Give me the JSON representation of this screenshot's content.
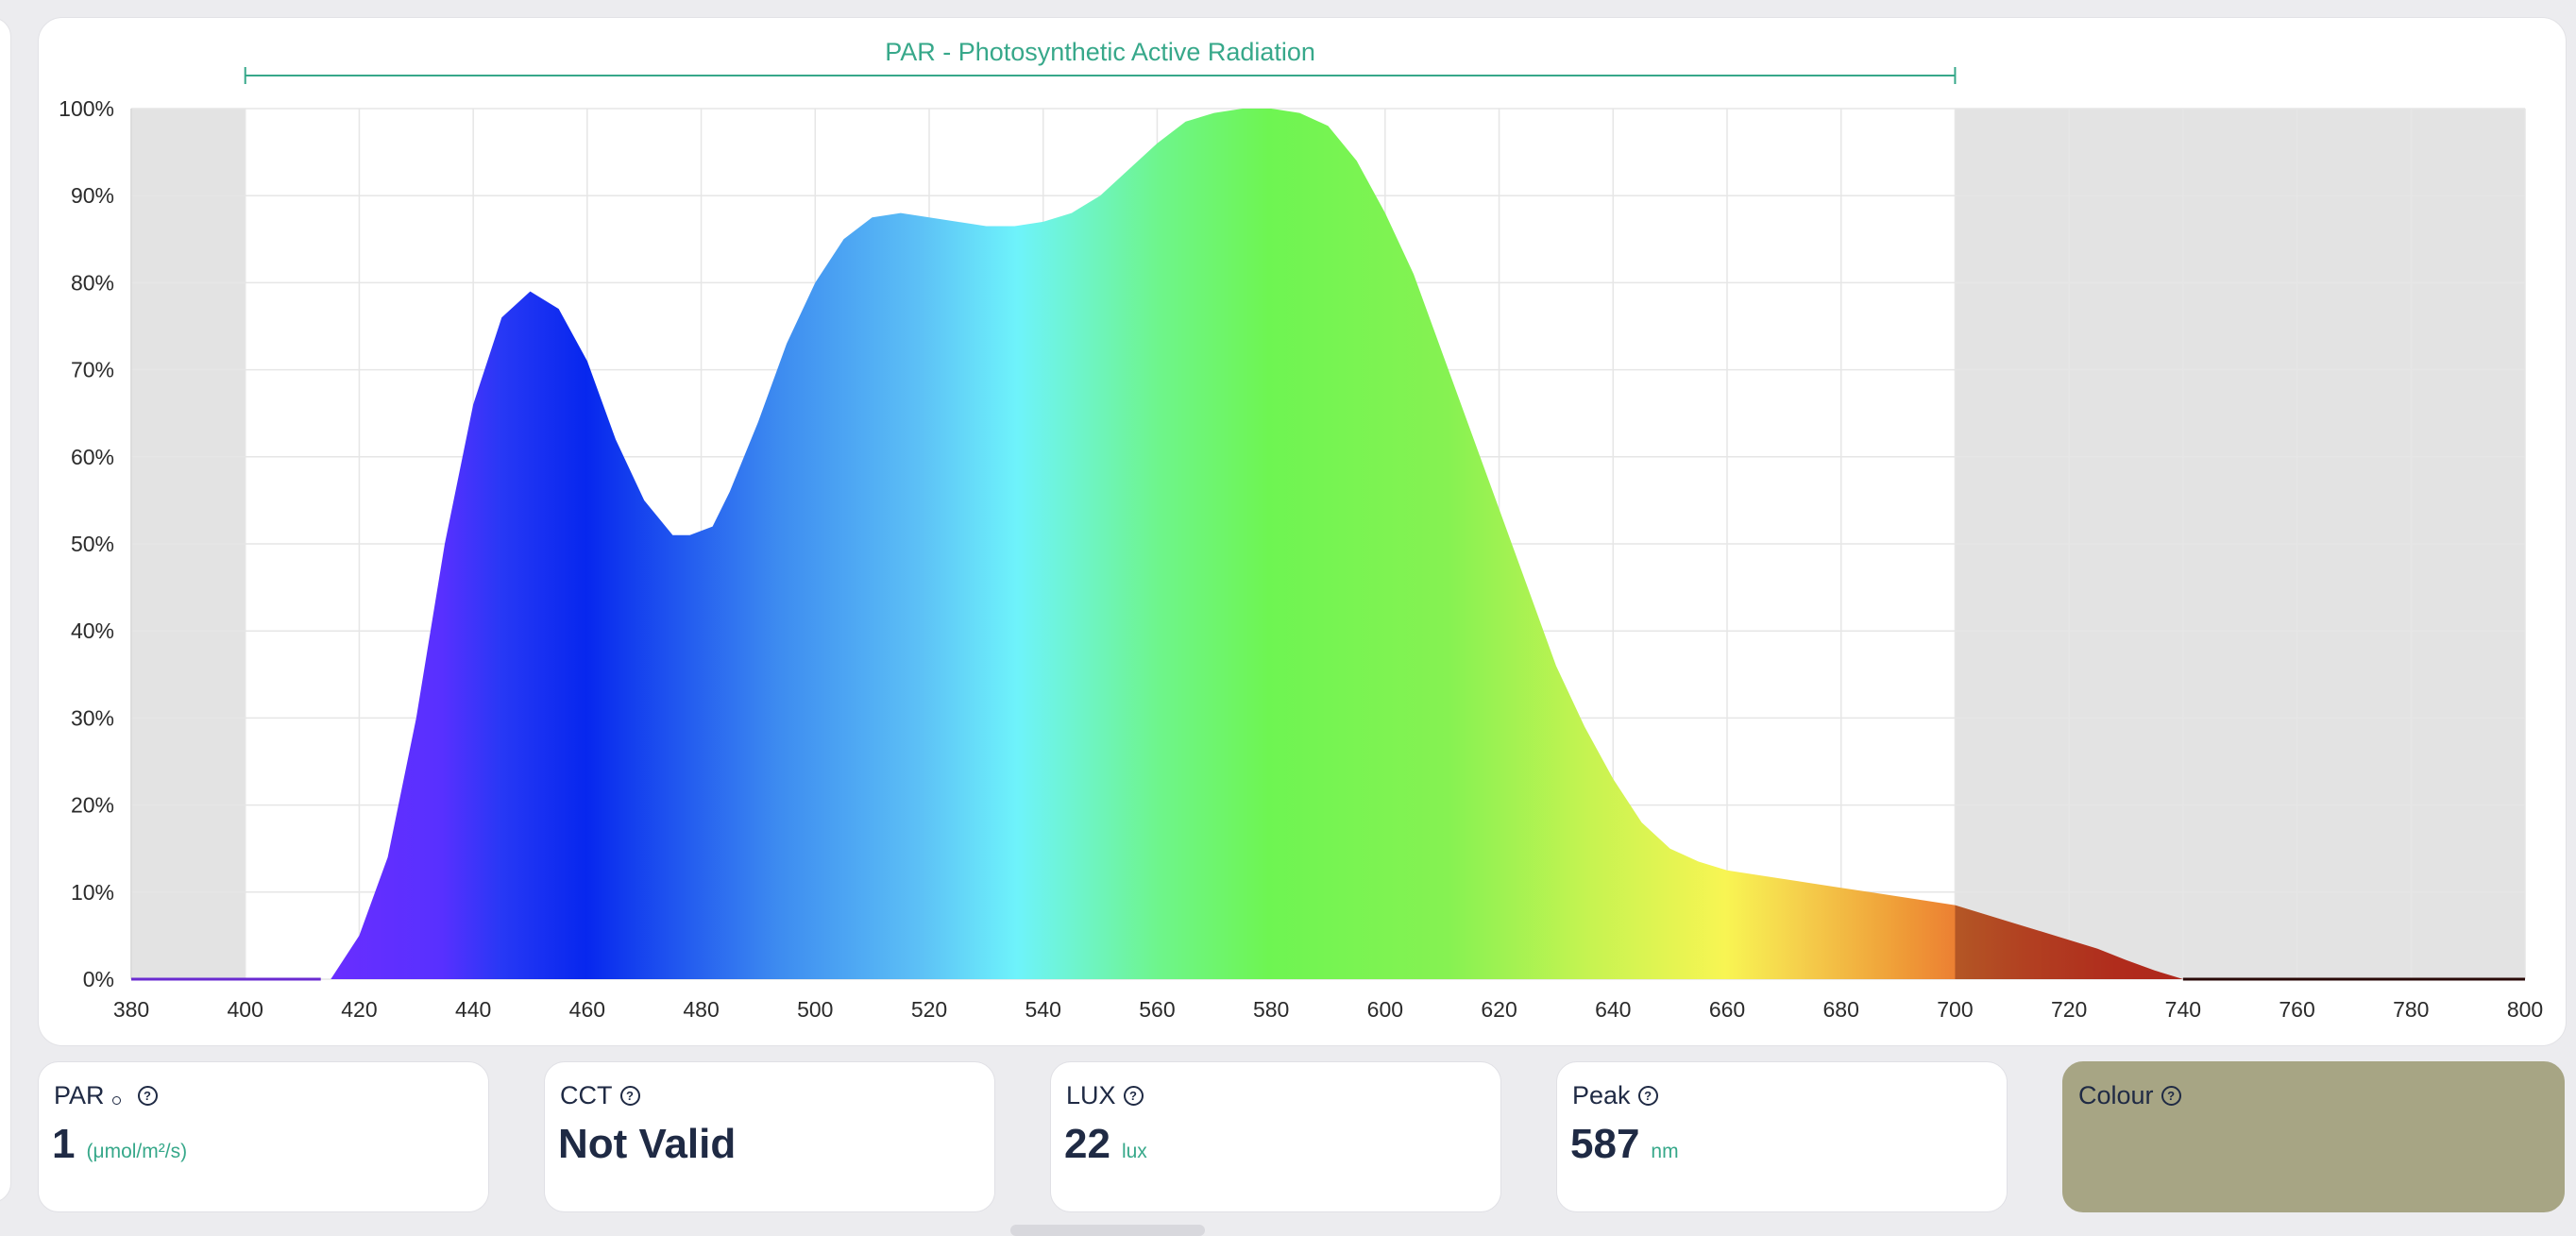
{
  "chart_data": {
    "type": "area",
    "title": "PAR - Photosynthetic Active Radiation",
    "xlabel": "",
    "ylabel": "",
    "xlim": [
      380,
      800
    ],
    "ylim": [
      0,
      100
    ],
    "x_ticks": [
      "380",
      "400",
      "420",
      "440",
      "460",
      "480",
      "500",
      "520",
      "540",
      "560",
      "580",
      "600",
      "620",
      "640",
      "660",
      "680",
      "700",
      "720",
      "740",
      "760",
      "780",
      "800"
    ],
    "y_ticks": [
      "0%",
      "10%",
      "20%",
      "30%",
      "40%",
      "50%",
      "60%",
      "70%",
      "80%",
      "90%",
      "100%"
    ],
    "par_range": [
      400,
      700
    ],
    "grid": true,
    "legend": "none",
    "series": [
      {
        "x": [
          380,
          400,
          415,
          420,
          425,
          430,
          435,
          440,
          445,
          450,
          455,
          460,
          465,
          470,
          475,
          478,
          482,
          485,
          490,
          495,
          500,
          505,
          510,
          515,
          520,
          525,
          530,
          535,
          540,
          545,
          550,
          555,
          560,
          565,
          570,
          575,
          580,
          585,
          590,
          595,
          600,
          605,
          610,
          615,
          620,
          625,
          630,
          635,
          640,
          645,
          650,
          655,
          660,
          665,
          670,
          675,
          680,
          685,
          690,
          695,
          700,
          705,
          710,
          715,
          720,
          725,
          730,
          735,
          740,
          760,
          780,
          800
        ],
        "y": [
          0,
          0,
          0,
          5,
          14,
          30,
          50,
          66,
          76,
          79,
          77,
          71,
          62,
          55,
          51,
          51,
          52,
          56,
          64,
          73,
          80,
          85,
          87.5,
          88,
          87.5,
          87,
          86.5,
          86.5,
          87,
          88,
          90,
          93,
          96,
          98.5,
          99.5,
          100,
          100,
          99.5,
          98,
          94,
          88,
          81,
          72,
          63,
          54,
          45,
          36,
          29,
          23,
          18,
          15,
          13.5,
          12.5,
          12,
          11.5,
          11,
          10.5,
          10,
          9.5,
          9,
          8.5,
          7.5,
          6.5,
          5.5,
          4.5,
          3.5,
          2.2,
          1,
          0,
          0,
          0,
          0
        ]
      }
    ]
  },
  "metrics": {
    "par": {
      "label": "PAR",
      "value": "1",
      "unit": "(μmol/m²/s)"
    },
    "cct": {
      "label": "CCT",
      "value": "Not Valid"
    },
    "lux": {
      "label": "LUX",
      "value": "22",
      "unit": "lux"
    },
    "peak": {
      "label": "Peak",
      "value": "587",
      "unit": "nm"
    },
    "colour": {
      "label": "Colour",
      "swatch": "#a7a584"
    }
  },
  "colors": {
    "accent": "#37a88a",
    "text": "#1f2a44",
    "outside_par_shade": "#e3e3e3"
  },
  "icons": {
    "help": "?"
  }
}
